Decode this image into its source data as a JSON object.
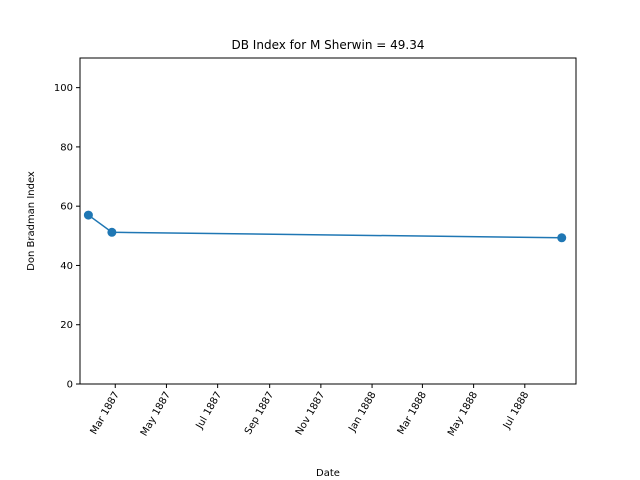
{
  "chart_data": {
    "type": "line",
    "title": "DB Index for M Sherwin = 49.34",
    "xlabel": "Date",
    "ylabel": "Don Bradman Index",
    "ylim": [
      0,
      110
    ],
    "xlim": [
      "1887-01-18",
      "1888-08-31"
    ],
    "yticks": [
      0,
      20,
      40,
      60,
      80,
      100
    ],
    "xticks": [
      {
        "date": "1887-03-01",
        "label": "Mar 1887"
      },
      {
        "date": "1887-05-01",
        "label": "May 1887"
      },
      {
        "date": "1887-07-01",
        "label": "Jul 1887"
      },
      {
        "date": "1887-09-01",
        "label": "Sep 1887"
      },
      {
        "date": "1887-11-01",
        "label": "Nov 1887"
      },
      {
        "date": "1888-01-01",
        "label": "Jan 1888"
      },
      {
        "date": "1888-03-01",
        "label": "Mar 1888"
      },
      {
        "date": "1888-05-01",
        "label": "May 1888"
      },
      {
        "date": "1888-07-01",
        "label": "Jul 1888"
      }
    ],
    "grid": false,
    "series": [
      {
        "color": "#1f77b4",
        "x": [
          "1887-01-28",
          "1887-02-25",
          "1888-08-14"
        ],
        "y": [
          57.0,
          51.2,
          49.34
        ]
      }
    ]
  }
}
